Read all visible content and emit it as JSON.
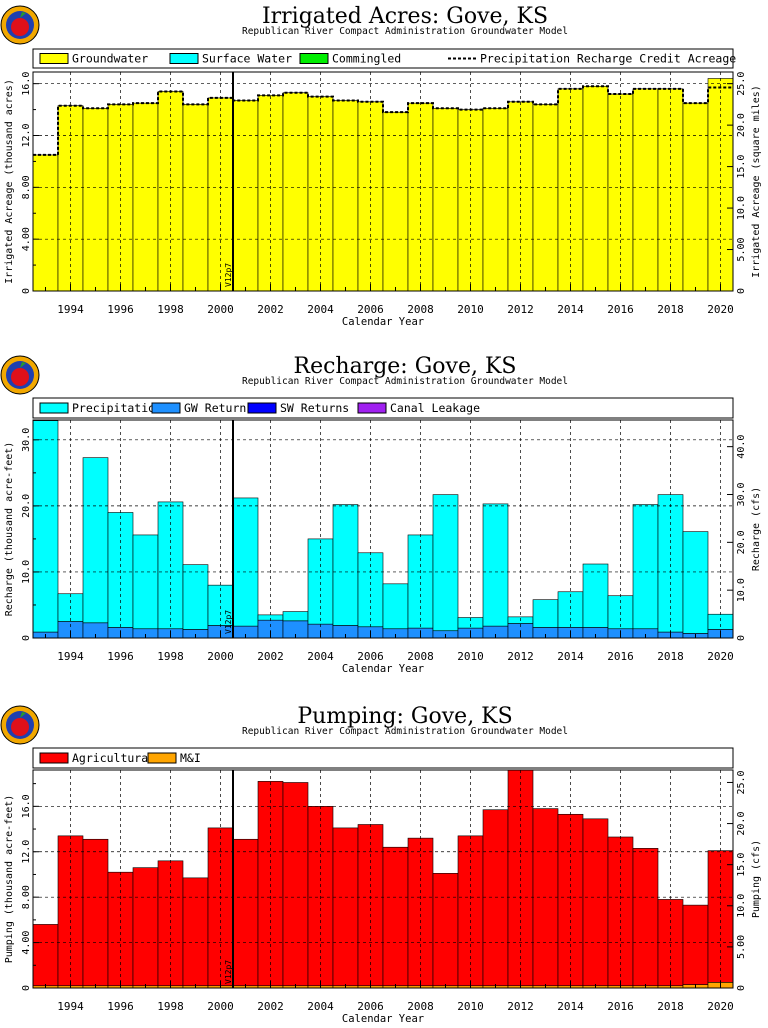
{
  "model_marker": "V12p7",
  "chart_data": [
    {
      "type": "bar",
      "title": "Irrigated Acres: Gove, KS",
      "subtitle": "Republican River Compact Administration Groundwater Model",
      "xlabel": "Calendar Year",
      "ylabel": "Irrigated Acreage (thousand acres)",
      "y2label": "Irrigated Acreage (square miles)",
      "x": [
        1993,
        1994,
        1995,
        1996,
        1997,
        1998,
        1999,
        2000,
        2001,
        2002,
        2003,
        2004,
        2005,
        2006,
        2007,
        2008,
        2009,
        2010,
        2011,
        2012,
        2013,
        2014,
        2015,
        2016,
        2017,
        2018,
        2019,
        2020
      ],
      "xticks": [
        "1994",
        "1996",
        "1998",
        "2000",
        "2002",
        "2004",
        "2006",
        "2008",
        "2010",
        "2012",
        "2014",
        "2016",
        "2018",
        "2020"
      ],
      "ylim": [
        0,
        16.9
      ],
      "yticks": [
        "0",
        "4.00",
        "8.00",
        "12.0",
        "16.0"
      ],
      "y2ticks": [
        "0",
        "5.00",
        "10.0",
        "15.0",
        "20.0",
        "25.0"
      ],
      "grid": true,
      "legend_position": "top",
      "series": [
        {
          "name": "Groundwater",
          "color": "#ffff00",
          "values": [
            10.5,
            14.3,
            14.1,
            14.4,
            14.5,
            15.4,
            14.4,
            14.9,
            14.7,
            15.1,
            15.3,
            15.0,
            14.7,
            14.6,
            13.8,
            14.5,
            14.1,
            14.0,
            14.1,
            14.6,
            14.4,
            15.6,
            15.8,
            15.2,
            15.6,
            15.6,
            14.5,
            16.4
          ]
        },
        {
          "name": "Surface Water",
          "color": "#00ffff",
          "values": [
            0,
            0,
            0,
            0,
            0,
            0,
            0,
            0,
            0,
            0,
            0,
            0,
            0,
            0,
            0,
            0,
            0,
            0,
            0,
            0,
            0,
            0,
            0,
            0,
            0,
            0,
            0,
            0
          ]
        },
        {
          "name": "Commingled",
          "color": "#00ee00",
          "values": [
            0,
            0,
            0,
            0,
            0,
            0,
            0,
            0,
            0,
            0,
            0,
            0,
            0,
            0,
            0,
            0,
            0,
            0,
            0,
            0,
            0,
            0,
            0,
            0,
            0,
            0,
            0,
            0
          ]
        }
      ],
      "line_series": {
        "name": "Precipitation Recharge Credit Acreage",
        "values": [
          10.5,
          14.3,
          14.1,
          14.4,
          14.5,
          15.4,
          14.4,
          14.9,
          14.7,
          15.1,
          15.3,
          15.0,
          14.7,
          14.6,
          13.8,
          14.5,
          14.1,
          14.0,
          14.1,
          14.6,
          14.4,
          15.6,
          15.8,
          15.2,
          15.6,
          15.6,
          14.5,
          15.7
        ]
      }
    },
    {
      "type": "bar",
      "title": "Recharge: Gove, KS",
      "subtitle": "Republican River Compact Administration Groundwater Model",
      "xlabel": "Calendar Year",
      "ylabel": "Recharge (thousand acre-feet)",
      "y2label": "Recharge (cfs)",
      "x": [
        1993,
        1994,
        1995,
        1996,
        1997,
        1998,
        1999,
        2000,
        2001,
        2002,
        2003,
        2004,
        2005,
        2006,
        2007,
        2008,
        2009,
        2010,
        2011,
        2012,
        2013,
        2014,
        2015,
        2016,
        2017,
        2018,
        2019,
        2020
      ],
      "xticks": [
        "1994",
        "1996",
        "1998",
        "2000",
        "2002",
        "2004",
        "2006",
        "2008",
        "2010",
        "2012",
        "2014",
        "2016",
        "2018",
        "2020"
      ],
      "ylim": [
        0,
        33
      ],
      "yticks": [
        "0",
        "10.0",
        "20.0",
        "30.0"
      ],
      "y2ticks": [
        "0",
        "10.0",
        "20.0",
        "30.0",
        "40.0"
      ],
      "grid": true,
      "legend_position": "top",
      "series": [
        {
          "name": "GW Returns",
          "color": "#1e90ff",
          "values": [
            0.9,
            2.5,
            2.3,
            1.6,
            1.4,
            1.4,
            1.3,
            1.9,
            1.8,
            2.7,
            2.6,
            2.1,
            1.9,
            1.7,
            1.4,
            1.5,
            1.1,
            1.5,
            1.8,
            2.2,
            1.6,
            1.6,
            1.6,
            1.4,
            1.4,
            0.9,
            0.7,
            1.3
          ]
        },
        {
          "name": "SW Returns",
          "color": "#0000ff",
          "values": [
            0,
            0,
            0,
            0,
            0,
            0,
            0,
            0,
            0,
            0,
            0,
            0,
            0,
            0,
            0,
            0,
            0,
            0,
            0,
            0,
            0,
            0,
            0,
            0,
            0,
            0,
            0,
            0
          ]
        },
        {
          "name": "Canal Leakage",
          "color": "#a020f0",
          "values": [
            0,
            0,
            0,
            0,
            0,
            0,
            0,
            0,
            0,
            0,
            0,
            0,
            0,
            0,
            0,
            0,
            0,
            0,
            0,
            0,
            0,
            0,
            0,
            0,
            0,
            0,
            0,
            0
          ]
        },
        {
          "name": "Precipitation",
          "color": "#00ffff",
          "values": [
            32.0,
            4.2,
            25.0,
            17.4,
            14.2,
            19.2,
            9.8,
            6.1,
            19.4,
            0.8,
            1.4,
            12.9,
            18.3,
            11.2,
            6.8,
            14.1,
            20.6,
            1.6,
            18.5,
            1.0,
            4.2,
            5.4,
            9.6,
            5.0,
            18.8,
            20.8,
            15.4,
            2.3
          ]
        }
      ]
    },
    {
      "type": "bar",
      "title": "Pumping: Gove, KS",
      "subtitle": "Republican River Compact Administration Groundwater Model",
      "xlabel": "Calendar Year",
      "ylabel": "Pumping (thousand acre-feet)",
      "y2label": "Pumping (cfs)",
      "x": [
        1993,
        1994,
        1995,
        1996,
        1997,
        1998,
        1999,
        2000,
        2001,
        2002,
        2003,
        2004,
        2005,
        2006,
        2007,
        2008,
        2009,
        2010,
        2011,
        2012,
        2013,
        2014,
        2015,
        2016,
        2017,
        2018,
        2019,
        2020
      ],
      "xticks": [
        "1994",
        "1996",
        "1998",
        "2000",
        "2002",
        "2004",
        "2006",
        "2008",
        "2010",
        "2012",
        "2014",
        "2016",
        "2018",
        "2020"
      ],
      "ylim": [
        0,
        19.2
      ],
      "yticks": [
        "0",
        "4.00",
        "8.00",
        "12.0",
        "16.0"
      ],
      "y2ticks": [
        "0",
        "5.00",
        "10.0",
        "15.0",
        "20.0",
        "25.0"
      ],
      "grid": true,
      "legend_position": "top",
      "series": [
        {
          "name": "M&I",
          "color": "#ffa500",
          "values": [
            0.2,
            0.2,
            0.2,
            0.2,
            0.2,
            0.2,
            0.2,
            0.2,
            0.2,
            0.2,
            0.2,
            0.2,
            0.2,
            0.2,
            0.2,
            0.2,
            0.2,
            0.2,
            0.2,
            0.2,
            0.2,
            0.2,
            0.2,
            0.2,
            0.2,
            0.2,
            0.3,
            0.5
          ]
        },
        {
          "name": "Agricultural",
          "color": "#ff0000",
          "values": [
            5.4,
            13.2,
            12.9,
            10.0,
            10.4,
            11.0,
            9.5,
            13.9,
            12.9,
            18.0,
            17.9,
            15.8,
            13.9,
            14.2,
            12.2,
            13.0,
            9.9,
            13.2,
            15.5,
            19.0,
            15.6,
            15.1,
            14.7,
            13.1,
            12.1,
            7.6,
            7.0,
            11.6
          ]
        }
      ]
    }
  ]
}
